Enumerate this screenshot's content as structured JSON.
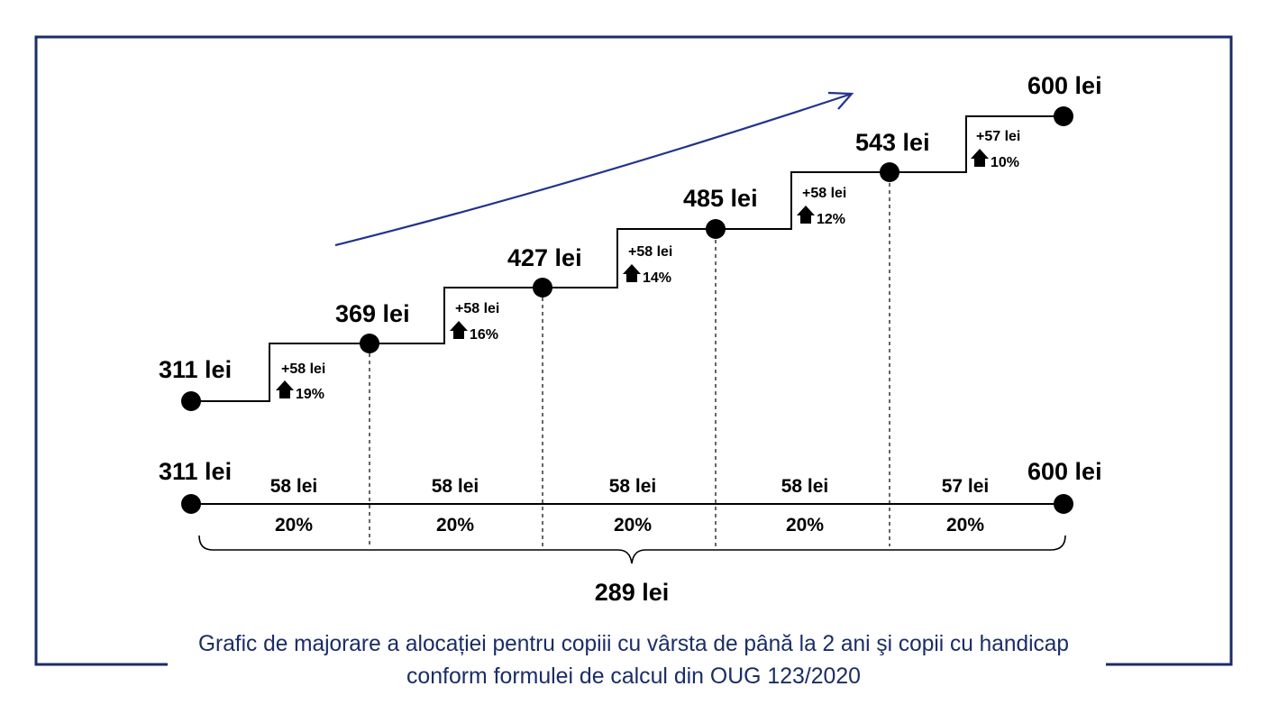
{
  "colors": {
    "frame": "#1a2d66",
    "trend_arrow": "#22338a",
    "ink": "#000000",
    "caption": "#1a2d66"
  },
  "staircase": {
    "steps": [
      {
        "value_label": "311 lei"
      },
      {
        "value_label": "369 lei",
        "increment": "+58 lei",
        "percent": "19%"
      },
      {
        "value_label": "427 lei",
        "increment": "+58 lei",
        "percent": "16%"
      },
      {
        "value_label": "485 lei",
        "increment": "+58 lei",
        "percent": "14%"
      },
      {
        "value_label": "543 lei",
        "increment": "+58 lei",
        "percent": "12%"
      },
      {
        "value_label": "600 lei",
        "increment": "+57 lei",
        "percent": "10%"
      }
    ],
    "trend_icon": "trend-arrow-icon"
  },
  "timeline": {
    "start_label": "311 lei",
    "end_label": "600 lei",
    "segments": [
      {
        "amount": "58 lei",
        "share": "20%"
      },
      {
        "amount": "58 lei",
        "share": "20%"
      },
      {
        "amount": "58 lei",
        "share": "20%"
      },
      {
        "amount": "58 lei",
        "share": "20%"
      },
      {
        "amount": "57 lei",
        "share": "20%"
      }
    ],
    "total_label": "289 lei"
  },
  "caption": {
    "line1": "Grafic de majorare a alocației pentru copiii cu vârsta de până la 2 ani şi copii cu handicap",
    "line2": "conform formulei de calcul din OUG 123/2020"
  }
}
